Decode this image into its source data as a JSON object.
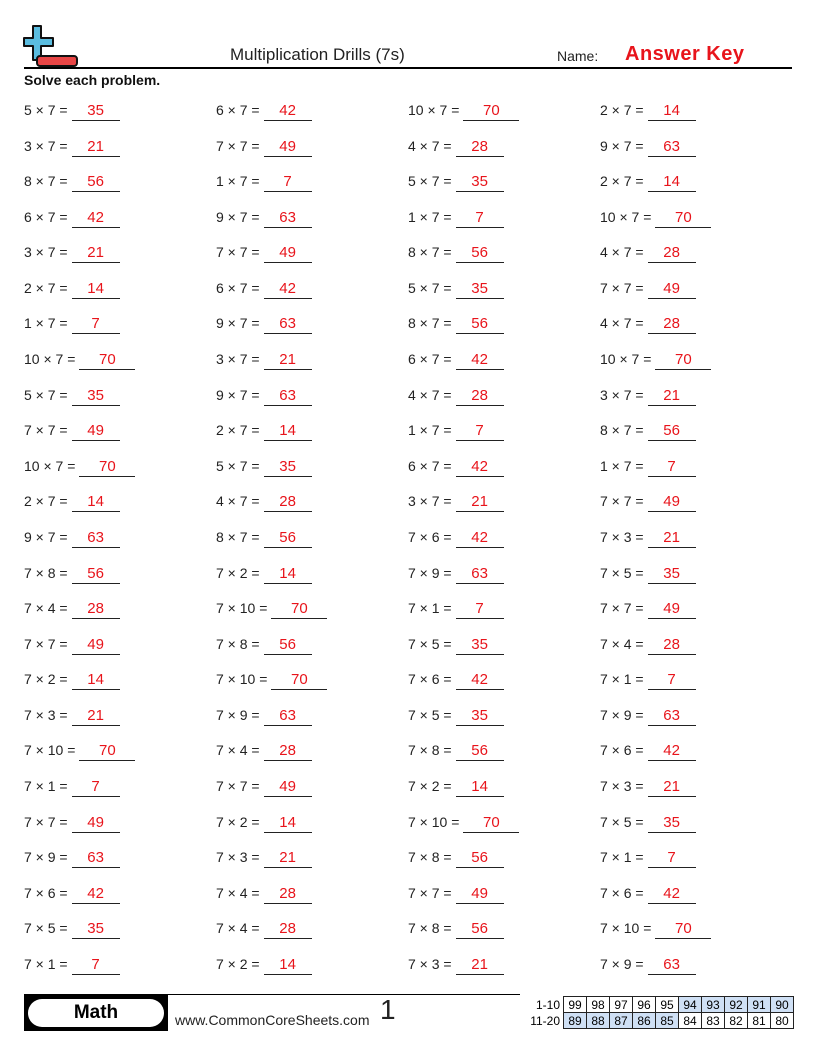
{
  "header": {
    "title": "Multiplication Drills (7s)",
    "name_label": "Name:",
    "answer_key": "Answer Key",
    "instructions": "Solve each problem."
  },
  "colors": {
    "answer": "#e8141b",
    "logo_plus": "#5bbde0",
    "logo_minus": "#e84545",
    "score_highlight": "#cfe0f5"
  },
  "problems": [
    [
      [
        "5 × 7 =",
        "35"
      ],
      [
        "6 × 7 =",
        "42"
      ],
      [
        "10 × 7 =",
        "70"
      ],
      [
        "2 × 7 =",
        "14"
      ]
    ],
    [
      [
        "3 × 7 =",
        "21"
      ],
      [
        "7 × 7 =",
        "49"
      ],
      [
        "4 × 7 =",
        "28"
      ],
      [
        "9 × 7 =",
        "63"
      ]
    ],
    [
      [
        "8 × 7 =",
        "56"
      ],
      [
        "1 × 7 =",
        "7"
      ],
      [
        "5 × 7 =",
        "35"
      ],
      [
        "2 × 7 =",
        "14"
      ]
    ],
    [
      [
        "6 × 7 =",
        "42"
      ],
      [
        "9 × 7 =",
        "63"
      ],
      [
        "1 × 7 =",
        "7"
      ],
      [
        "10 × 7 =",
        "70"
      ]
    ],
    [
      [
        "3 × 7 =",
        "21"
      ],
      [
        "7 × 7 =",
        "49"
      ],
      [
        "8 × 7 =",
        "56"
      ],
      [
        "4 × 7 =",
        "28"
      ]
    ],
    [
      [
        "2 × 7 =",
        "14"
      ],
      [
        "6 × 7 =",
        "42"
      ],
      [
        "5 × 7 =",
        "35"
      ],
      [
        "7 × 7 =",
        "49"
      ]
    ],
    [
      [
        "1 × 7 =",
        "7"
      ],
      [
        "9 × 7 =",
        "63"
      ],
      [
        "8 × 7 =",
        "56"
      ],
      [
        "4 × 7 =",
        "28"
      ]
    ],
    [
      [
        "10 × 7 =",
        "70"
      ],
      [
        "3 × 7 =",
        "21"
      ],
      [
        "6 × 7 =",
        "42"
      ],
      [
        "10 × 7 =",
        "70"
      ]
    ],
    [
      [
        "5 × 7 =",
        "35"
      ],
      [
        "9 × 7 =",
        "63"
      ],
      [
        "4 × 7 =",
        "28"
      ],
      [
        "3 × 7 =",
        "21"
      ]
    ],
    [
      [
        "7 × 7 =",
        "49"
      ],
      [
        "2 × 7 =",
        "14"
      ],
      [
        "1 × 7 =",
        "7"
      ],
      [
        "8 × 7 =",
        "56"
      ]
    ],
    [
      [
        "10 × 7 =",
        "70"
      ],
      [
        "5 × 7 =",
        "35"
      ],
      [
        "6 × 7 =",
        "42"
      ],
      [
        "1 × 7 =",
        "7"
      ]
    ],
    [
      [
        "2 × 7 =",
        "14"
      ],
      [
        "4 × 7 =",
        "28"
      ],
      [
        "3 × 7 =",
        "21"
      ],
      [
        "7 × 7 =",
        "49"
      ]
    ],
    [
      [
        "9 × 7 =",
        "63"
      ],
      [
        "8 × 7 =",
        "56"
      ],
      [
        "7 × 6 =",
        "42"
      ],
      [
        "7 × 3 =",
        "21"
      ]
    ],
    [
      [
        "7 × 8 =",
        "56"
      ],
      [
        "7 × 2 =",
        "14"
      ],
      [
        "7 × 9 =",
        "63"
      ],
      [
        "7 × 5 =",
        "35"
      ]
    ],
    [
      [
        "7 × 4 =",
        "28"
      ],
      [
        "7 × 10 =",
        "70"
      ],
      [
        "7 × 1 =",
        "7"
      ],
      [
        "7 × 7 =",
        "49"
      ]
    ],
    [
      [
        "7 × 7 =",
        "49"
      ],
      [
        "7 × 8 =",
        "56"
      ],
      [
        "7 × 5 =",
        "35"
      ],
      [
        "7 × 4 =",
        "28"
      ]
    ],
    [
      [
        "7 × 2 =",
        "14"
      ],
      [
        "7 × 10 =",
        "70"
      ],
      [
        "7 × 6 =",
        "42"
      ],
      [
        "7 × 1 =",
        "7"
      ]
    ],
    [
      [
        "7 × 3 =",
        "21"
      ],
      [
        "7 × 9 =",
        "63"
      ],
      [
        "7 × 5 =",
        "35"
      ],
      [
        "7 × 9 =",
        "63"
      ]
    ],
    [
      [
        "7 × 10 =",
        "70"
      ],
      [
        "7 × 4 =",
        "28"
      ],
      [
        "7 × 8 =",
        "56"
      ],
      [
        "7 × 6 =",
        "42"
      ]
    ],
    [
      [
        "7 × 1 =",
        "7"
      ],
      [
        "7 × 7 =",
        "49"
      ],
      [
        "7 × 2 =",
        "14"
      ],
      [
        "7 × 3 =",
        "21"
      ]
    ],
    [
      [
        "7 × 7 =",
        "49"
      ],
      [
        "7 × 2 =",
        "14"
      ],
      [
        "7 × 10 =",
        "70"
      ],
      [
        "7 × 5 =",
        "35"
      ]
    ],
    [
      [
        "7 × 9 =",
        "63"
      ],
      [
        "7 × 3 =",
        "21"
      ],
      [
        "7 × 8 =",
        "56"
      ],
      [
        "7 × 1 =",
        "7"
      ]
    ],
    [
      [
        "7 × 6 =",
        "42"
      ],
      [
        "7 × 4 =",
        "28"
      ],
      [
        "7 × 7 =",
        "49"
      ],
      [
        "7 × 6 =",
        "42"
      ]
    ],
    [
      [
        "7 × 5 =",
        "35"
      ],
      [
        "7 × 4 =",
        "28"
      ],
      [
        "7 × 8 =",
        "56"
      ],
      [
        "7 × 10 =",
        "70"
      ]
    ],
    [
      [
        "7 × 1 =",
        "7"
      ],
      [
        "7 × 2 =",
        "14"
      ],
      [
        "7 × 3 =",
        "21"
      ],
      [
        "7 × 9 =",
        "63"
      ]
    ]
  ],
  "footer": {
    "subject": "Math",
    "website": "www.CommonCoreSheets.com",
    "page_number": "1",
    "score_rows": [
      {
        "label": "1-10",
        "scores": [
          "99",
          "98",
          "97",
          "96",
          "95",
          "94",
          "93",
          "92",
          "91",
          "90"
        ],
        "highlighted": [
          false,
          false,
          false,
          false,
          false,
          true,
          true,
          true,
          true,
          true
        ]
      },
      {
        "label": "11-20",
        "scores": [
          "89",
          "88",
          "87",
          "86",
          "85",
          "84",
          "83",
          "82",
          "81",
          "80"
        ],
        "highlighted": [
          true,
          true,
          true,
          true,
          true,
          false,
          false,
          false,
          false,
          false
        ]
      }
    ]
  }
}
